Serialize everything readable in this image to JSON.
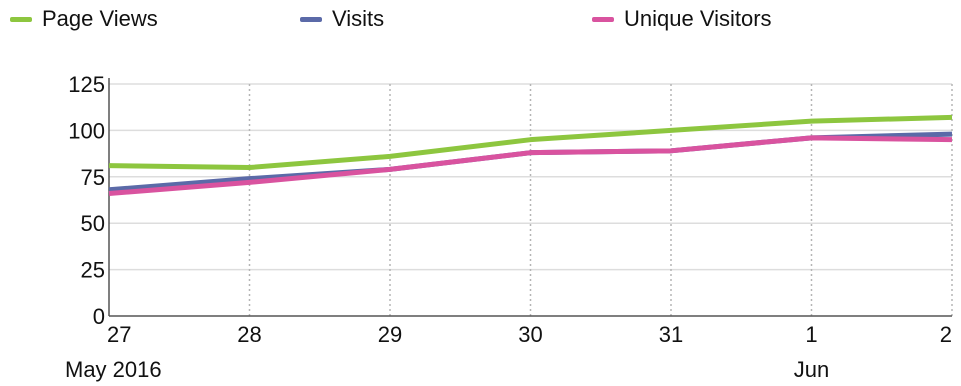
{
  "chart_data": {
    "type": "line",
    "title": "",
    "xlabel": "",
    "ylabel": "",
    "x": [
      "27",
      "28",
      "29",
      "30",
      "31",
      "1",
      "2"
    ],
    "x_sublabels": [
      "May 2016",
      "",
      "",
      "",
      "",
      "Jun",
      ""
    ],
    "ylim": [
      0,
      125
    ],
    "yticks": [
      "0",
      "25",
      "50",
      "75",
      "100",
      "125"
    ],
    "grid": true,
    "legend_position": "top",
    "series": [
      {
        "name": "Page Views",
        "color": "#8dc63f",
        "values": [
          81,
          80,
          86,
          95,
          100,
          105,
          107
        ]
      },
      {
        "name": "Visits",
        "color": "#5b6aa8",
        "values": [
          68,
          74,
          79,
          88,
          89,
          96,
          98
        ]
      },
      {
        "name": "Unique Visitors",
        "color": "#d9539f",
        "values": [
          66,
          72,
          79,
          88,
          89,
          96,
          95
        ]
      }
    ]
  }
}
